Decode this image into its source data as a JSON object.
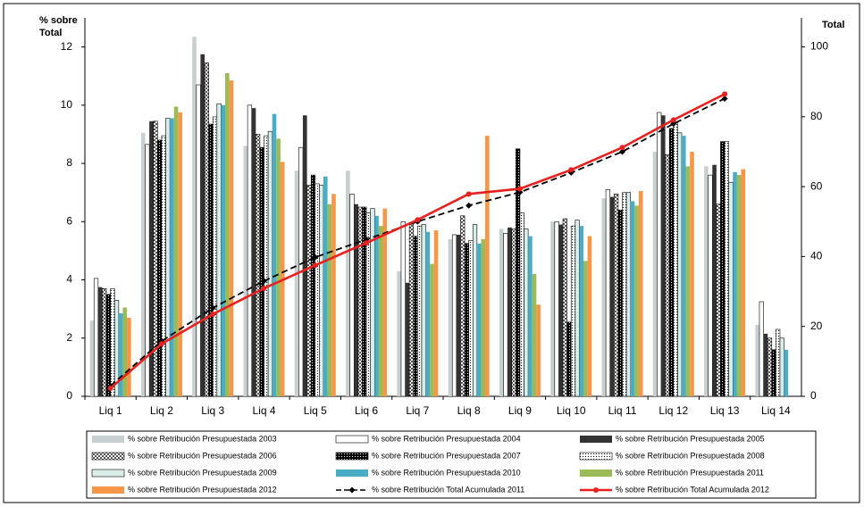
{
  "chart_data": {
    "type": "bar",
    "y_label": "% sobre Total",
    "y2_label": "Total",
    "categories": [
      "Liq 1",
      "Liq 2",
      "Liq 3",
      "Liq 4",
      "Liq 5",
      "Liq 6",
      "Liq 7",
      "Liq 8",
      "Liq 9",
      "Liq 10",
      "Liq 11",
      "Liq 12",
      "Liq 13",
      "Liq 14"
    ],
    "ylim": [
      0,
      13
    ],
    "yticks": [
      0,
      2,
      4,
      6,
      8,
      10,
      12
    ],
    "y2lim": [
      0,
      108.3
    ],
    "y2ticks": [
      0,
      20,
      40,
      60,
      80,
      100
    ],
    "series": [
      {
        "name": "% sobre Retribución Presupuestada 2003",
        "color": "#c8cfd0",
        "values": [
          2.6,
          9.05,
          12.35,
          8.6,
          7.75,
          7.75,
          4.3,
          5.4,
          5.75,
          6.0,
          6.8,
          8.4,
          7.9,
          2.45
        ]
      },
      {
        "name": "% sobre Retribución Presupuestada 2004",
        "color": "#ffffff",
        "values": [
          4.05,
          8.65,
          10.7,
          10.0,
          8.55,
          6.95,
          6.0,
          5.55,
          5.6,
          6.0,
          7.1,
          9.75,
          7.6,
          3.25
        ]
      },
      {
        "name": "% sobre Retribución Presupuestada 2005",
        "color": "#333333",
        "values": [
          3.75,
          9.45,
          11.75,
          9.9,
          9.65,
          6.6,
          3.9,
          5.55,
          5.8,
          5.9,
          6.85,
          9.65,
          7.95,
          2.15
        ]
      },
      {
        "name": "% sobre Retribución Presupuestada 2006",
        "color": "#555555",
        "pattern": "checker",
        "values": [
          3.7,
          9.45,
          11.45,
          9.0,
          7.25,
          6.5,
          5.95,
          6.2,
          5.75,
          6.1,
          6.95,
          8.3,
          6.6,
          2.0
        ]
      },
      {
        "name": "% sobre Retribución Presupuestada 2007",
        "color": "#000000",
        "pattern": "dots",
        "values": [
          3.5,
          8.8,
          9.35,
          8.55,
          7.6,
          6.5,
          5.5,
          5.25,
          8.5,
          2.55,
          6.4,
          9.2,
          8.75,
          1.6
        ]
      },
      {
        "name": "% sobre Retribución Presupuestada 2008",
        "color": "#ffffff",
        "pattern": "dots",
        "values": [
          3.7,
          8.95,
          9.6,
          8.95,
          7.3,
          6.3,
          5.85,
          5.35,
          6.3,
          5.85,
          7.0,
          9.4,
          8.75,
          2.3
        ]
      },
      {
        "name": "% sobre Retribución Presupuestada 2009",
        "color": "#d9eeea",
        "values": [
          3.3,
          9.55,
          10.05,
          9.1,
          7.25,
          6.45,
          5.9,
          5.9,
          5.75,
          6.05,
          7.0,
          9.05,
          7.35,
          2.0
        ]
      },
      {
        "name": "% sobre Retribución Presupuestada 2010",
        "color": "#4bacc6",
        "values": [
          2.85,
          9.55,
          10.0,
          9.7,
          7.55,
          6.2,
          5.65,
          5.25,
          5.5,
          5.85,
          6.7,
          8.95,
          7.7,
          1.6
        ]
      },
      {
        "name": "% sobre Retribución Presupuestada 2011",
        "color": "#9bbb59",
        "values": [
          3.05,
          9.95,
          11.1,
          8.85,
          6.6,
          5.85,
          4.55,
          5.4,
          4.2,
          4.65,
          6.55,
          7.9,
          7.6,
          null
        ]
      },
      {
        "name": "% sobre Retribución Presupuestada 2012",
        "color": "#f79646",
        "values": [
          2.7,
          9.75,
          10.85,
          8.05,
          6.95,
          6.45,
          5.7,
          8.95,
          3.15,
          5.5,
          7.05,
          8.4,
          7.8,
          null
        ]
      },
      {
        "name": "% sobre Retribución Total Acumulada 2011",
        "type": "line",
        "axis": "y2",
        "color": "#000000",
        "style": "dashed",
        "marker": "diamond",
        "values": [
          3,
          15.8,
          25.3,
          33,
          39.8,
          44.9,
          50,
          54.6,
          58.4,
          64,
          70,
          78,
          85.2,
          null
        ]
      },
      {
        "name": "% sobre Retribución Total Acumulada 2012",
        "type": "line",
        "axis": "y2",
        "color": "#e8211f",
        "style": "solid",
        "marker": "circle",
        "values": [
          2.3,
          15,
          23.5,
          30.9,
          37.5,
          43.9,
          50.5,
          57.9,
          59.4,
          64.8,
          71.2,
          79.1,
          86.5,
          null
        ]
      }
    ]
  }
}
